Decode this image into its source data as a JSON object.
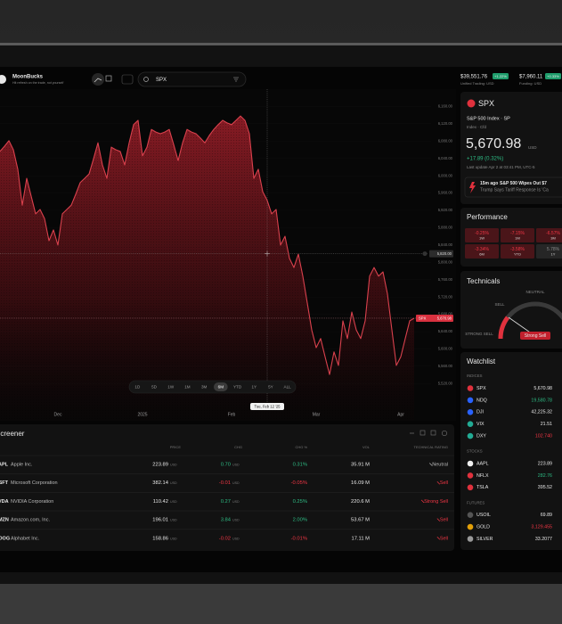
{
  "app": {
    "name": "MoonBucks",
    "tagline": "Hit refresh on the trade, not yourself",
    "search": "SPX"
  },
  "account": [
    {
      "amount": "$39,551.76",
      "change": "+1.22%",
      "label": "Unified Trading: USD"
    },
    {
      "amount": "$7,960.11",
      "change": "+0.33%",
      "label": "Funding: USD"
    }
  ],
  "chart_data": {
    "type": "area",
    "series": [
      {
        "name": "SPX",
        "color": "#d9414d",
        "values": [
          6056,
          6068,
          6081,
          6060,
          6015,
          5932,
          5994,
          5953,
          5912,
          5922,
          5901,
          5850,
          5875,
          5840,
          5912,
          5922,
          5932,
          5957,
          5984,
          5994,
          6004,
          6039,
          6076,
          6025,
          5994,
          6066,
          6060,
          6056,
          6025,
          6076,
          6118,
          6128,
          6046,
          6066,
          6107,
          6101,
          6097,
          6101,
          6107,
          6072,
          6035,
          6076,
          6107,
          6101,
          6097,
          6087,
          6076,
          6093,
          6107,
          6118,
          6128,
          6122,
          6118,
          6128,
          6138,
          6128,
          6097,
          5994,
          6015,
          5963,
          5943,
          5912,
          5922,
          5840,
          5860,
          5809,
          5788,
          5819,
          5768,
          5706,
          5644,
          5603,
          5624,
          5582,
          5541,
          5593,
          5562,
          5665,
          5624,
          5685,
          5644,
          5624,
          5665,
          5768,
          5788,
          5768,
          5778,
          5727,
          5644,
          5562,
          5582,
          5624,
          5665,
          5670.98
        ]
      }
    ],
    "categories": [
      null,
      null,
      null,
      null,
      null,
      null,
      null,
      null,
      null,
      null,
      null,
      null,
      null,
      "Dec",
      null,
      null,
      null,
      null,
      null,
      null,
      null,
      null,
      null,
      null,
      null,
      null,
      null,
      null,
      null,
      null,
      null,
      null,
      "2025",
      null,
      null,
      null,
      null,
      null,
      null,
      null,
      null,
      null,
      null,
      null,
      null,
      null,
      null,
      null,
      null,
      null,
      null,
      null,
      "Feb",
      null,
      null,
      null,
      null,
      null,
      null,
      null,
      null,
      null,
      null,
      null,
      null,
      null,
      null,
      null,
      null,
      null,
      null,
      "Mar",
      null,
      null,
      null,
      null,
      null,
      null,
      null,
      null,
      null,
      null,
      null,
      null,
      null,
      null,
      null,
      null,
      null,
      null,
      "Apr",
      null,
      null,
      null
    ],
    "ylim": [
      5500,
      6200
    ],
    "yticks": [
      {
        "value": 6160,
        "label": "6,160.00"
      },
      {
        "value": 6120,
        "label": "6,120.00"
      },
      {
        "value": 6080,
        "label": "6,080.00"
      },
      {
        "value": 6040,
        "label": "6,040.00"
      },
      {
        "value": 6000,
        "label": "6,000.00"
      },
      {
        "value": 5960,
        "label": "5,960.00"
      },
      {
        "value": 5920,
        "label": "5,920.00"
      },
      {
        "value": 5880,
        "label": "5,880.00"
      },
      {
        "value": 5840,
        "label": "5,840.00"
      },
      {
        "value": 5800,
        "label": "5,800.00"
      },
      {
        "value": 5760,
        "label": "5,760.00"
      },
      {
        "value": 5720,
        "label": "5,720.00"
      },
      {
        "value": 5680,
        "label": "5,680.00"
      },
      {
        "value": 5640,
        "label": "5,640.00"
      },
      {
        "value": 5600,
        "label": "5,600.00"
      },
      {
        "value": 5560,
        "label": "5,560.00"
      },
      {
        "value": 5520,
        "label": "5,520.00"
      }
    ],
    "price_line": {
      "value": 5670.98,
      "label": "5,670.98"
    },
    "crosshair": {
      "value": 5820,
      "label": "5,820.00",
      "date": "Tue, Feb 12 '25"
    }
  },
  "chart_controls": {
    "ranges": [
      "1D",
      "5D",
      "1W",
      "1M",
      "3M",
      "6M",
      "YTD",
      "1Y",
      "5Y",
      "ALL"
    ],
    "active_index": 5
  },
  "screener": {
    "title": "Screener",
    "currency": "USD",
    "columns": [
      "PRICE",
      "CHG",
      "CHG %",
      "VOL",
      "TECHNICAL RATING"
    ],
    "rows": [
      {
        "ticker": "AAPL",
        "name": "Apple Inc.",
        "price": "223.89",
        "chg": "0.70",
        "chg_pct": "0.31%",
        "vol": "35.91 M",
        "rating": "Neutral",
        "color": "#2ebd85",
        "rating_color": "#bbbbbb"
      },
      {
        "ticker": "MSFT",
        "name": "Microsoft Corporation",
        "price": "382.14",
        "chg": "-0.01",
        "chg_pct": "-0.05%",
        "vol": "16.09 M",
        "rating": "Sell",
        "color": "#f23645",
        "rating_color": "#f23645"
      },
      {
        "ticker": "NVDA",
        "name": "NVIDIA Corporation",
        "price": "110.42",
        "chg": "0.27",
        "chg_pct": "0.25%",
        "vol": "220.6 M",
        "rating": "Strong Sell",
        "color": "#2ebd85",
        "rating_color": "#f23645"
      },
      {
        "ticker": "AMZN",
        "name": "Amazon.com, Inc.",
        "price": "196.01",
        "chg": "3.84",
        "chg_pct": "2.00%",
        "vol": "53.67 M",
        "rating": "Sell",
        "color": "#2ebd85",
        "rating_color": "#f23645"
      },
      {
        "ticker": "GOOG",
        "name": "Alphabet Inc.",
        "price": "158.86",
        "chg": "-0.02",
        "chg_pct": "-0.01%",
        "vol": "17.11 M",
        "rating": "Sell",
        "color": "#f23645",
        "rating_color": "#f23645"
      }
    ]
  },
  "quote": {
    "symbol": "SPX",
    "name": "S&P 500 Index · SP",
    "kind": "Index · Cfd",
    "price": "5,670.98",
    "currency": "USD",
    "change": "+17.89 (0.32%)",
    "updated": "Last update Apr 2 at 03:41 PM, UTC-5",
    "news_time": "15m ago",
    "news_line1": "S&P 500 Wipes Out $7",
    "news_line2": "Trump Says Tariff Response Is 'Ca"
  },
  "performance": {
    "title": "Performance",
    "cells": [
      {
        "value": "-0.25%",
        "period": "1W",
        "color": "#f23645"
      },
      {
        "value": "-7.15%",
        "period": "1M",
        "color": "#f23645"
      },
      {
        "value": "-6.57%",
        "period": "3M",
        "color": "#f23645"
      },
      {
        "value": "-3.34%",
        "period": "6M",
        "color": "#f23645"
      },
      {
        "value": "-3.58%",
        "period": "YTD",
        "color": "#f23645"
      },
      {
        "value": "5.78%",
        "period": "1Y",
        "color": "#888888"
      }
    ]
  },
  "technicals": {
    "title": "Technicals",
    "neutral": "NEUTRAL",
    "sell": "SELL",
    "strong_sell": "STRONG SELL",
    "rating": "Strong Sell"
  },
  "watchlist": {
    "title": "Watchlist",
    "sections": [
      {
        "title": "INDICES",
        "items": [
          {
            "symbol": "SPX",
            "value": "5,670.98",
            "color": "#e8e8e8",
            "icon": "#e0313d"
          },
          {
            "symbol": "NDQ",
            "value": "19,580.78",
            "color": "#2ebd85",
            "icon": "#2962ff"
          },
          {
            "symbol": "DJI",
            "value": "42,225.32",
            "color": "#e8e8e8",
            "icon": "#2962ff"
          },
          {
            "symbol": "VIX",
            "value": "21.51",
            "color": "#e8e8e8",
            "icon": "#22ab94"
          },
          {
            "symbol": "DXY",
            "value": "102.740",
            "color": "#f23645",
            "icon": "#22ab94"
          }
        ]
      },
      {
        "title": "STOCKS",
        "items": [
          {
            "symbol": "AAPL",
            "value": "223.89",
            "color": "#e8e8e8",
            "icon": "#f0f0f0"
          },
          {
            "symbol": "NFLX",
            "value": "282.76",
            "color": "#2ebd85",
            "icon": "#e0313d"
          },
          {
            "symbol": "TSLA",
            "value": "395.52",
            "color": "#e8e8e8",
            "icon": "#e0313d"
          }
        ]
      },
      {
        "title": "FUTURES",
        "items": [
          {
            "symbol": "USOIL",
            "value": "69.89",
            "color": "#e8e8e8",
            "icon": "#555555"
          },
          {
            "symbol": "GOLD",
            "value": "3,129.455",
            "color": "#f23645",
            "icon": "#e3a008"
          },
          {
            "symbol": "SILVER",
            "value": "33.2077",
            "color": "#e8e8e8",
            "icon": "#9a9a9a"
          }
        ]
      }
    ]
  }
}
